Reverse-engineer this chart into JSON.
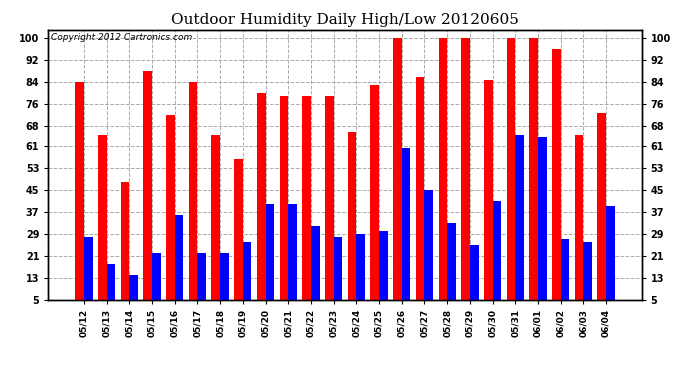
{
  "title": "Outdoor Humidity Daily High/Low 20120605",
  "copyright": "Copyright 2012 Cartronics.com",
  "dates": [
    "05/12",
    "05/13",
    "05/14",
    "05/15",
    "05/16",
    "05/17",
    "05/18",
    "05/19",
    "05/20",
    "05/21",
    "05/22",
    "05/23",
    "05/24",
    "05/25",
    "05/26",
    "05/27",
    "05/28",
    "05/29",
    "05/30",
    "05/31",
    "06/01",
    "06/02",
    "06/03",
    "06/04"
  ],
  "highs": [
    84,
    65,
    48,
    88,
    72,
    84,
    65,
    56,
    80,
    79,
    79,
    79,
    66,
    83,
    100,
    86,
    100,
    100,
    85,
    100,
    100,
    96,
    65,
    73
  ],
  "lows": [
    28,
    18,
    14,
    22,
    36,
    22,
    22,
    26,
    40,
    40,
    32,
    28,
    29,
    30,
    60,
    45,
    33,
    25,
    41,
    65,
    64,
    27,
    26,
    39
  ],
  "high_color": "#FF0000",
  "low_color": "#0000FF",
  "bg_color": "#FFFFFF",
  "grid_color": "#AAAAAA",
  "title_fontsize": 11,
  "copyright_fontsize": 6.5,
  "yticks": [
    5,
    13,
    21,
    29,
    37,
    45,
    53,
    61,
    68,
    76,
    84,
    92,
    100
  ],
  "ylim": [
    5,
    103
  ],
  "ymin": 5,
  "bar_width": 0.38
}
